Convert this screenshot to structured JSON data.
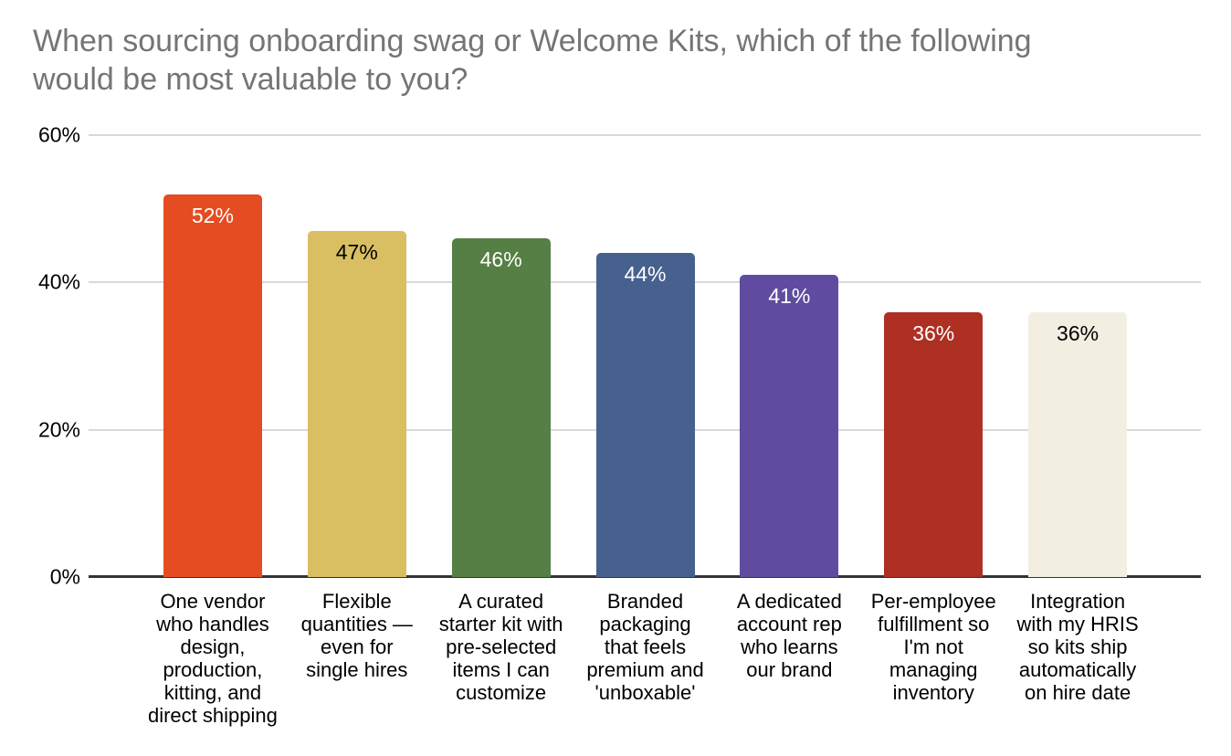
{
  "chart_data": {
    "type": "bar",
    "title": "When sourcing onboarding swag or Welcome Kits, which of the following would be most valuable to you?",
    "categories": [
      "One vendor who handles design, production, kitting, and direct shipping",
      "Flexible quantities — even for single hires",
      "A curated starter kit with pre-selected items I can customize",
      "Branded packaging that feels premium and 'unboxable'",
      "A dedicated account rep who learns our brand",
      "Per-employee fulfillment so I'm not managing inventory",
      "Integration with my HRIS so kits ship automatically on hire date"
    ],
    "category_lines": [
      [
        "One vendor",
        "who handles",
        "design,",
        "production,",
        "kitting, and",
        "direct shipping"
      ],
      [
        "Flexible",
        "quantities —",
        "even for",
        "single hires"
      ],
      [
        "A curated",
        "starter kit with",
        "pre-selected",
        "items I can",
        "customize"
      ],
      [
        "Branded",
        "packaging",
        "that feels",
        "premium and",
        "'unboxable'"
      ],
      [
        "A dedicated",
        "account rep",
        "who learns",
        "our brand"
      ],
      [
        "Per-employee",
        "fulfillment so",
        "I'm not",
        "managing",
        "inventory"
      ],
      [
        "Integration",
        "with my HRIS",
        "so kits ship",
        "automatically",
        "on hire date"
      ]
    ],
    "values": [
      52,
      47,
      46,
      44,
      41,
      36,
      36
    ],
    "value_labels": [
      "52%",
      "47%",
      "46%",
      "44%",
      "41%",
      "36%",
      "36%"
    ],
    "ylim": [
      0,
      60
    ],
    "yticks": [
      0,
      20,
      40,
      60
    ],
    "ytick_labels": [
      "0%",
      "20%",
      "40%",
      "60%"
    ],
    "xlabel": "",
    "ylabel": "",
    "grid": true,
    "legend": "none",
    "bar_colors": [
      "#E54C21",
      "#D9BF62",
      "#567F45",
      "#46618E",
      "#5F4CA0",
      "#AD3023",
      "#F2EFE2"
    ],
    "value_label_colors": [
      "#FFFFFF",
      "#000000",
      "#FFFFFF",
      "#FFFFFF",
      "#FFFFFF",
      "#FFFFFF",
      "#000000"
    ]
  },
  "style": {
    "background": "#FFFFFF",
    "title_color": "#757575",
    "gridline_color": "#D9D9D9",
    "axis_line_color": "#333333",
    "tick_label_color": "#000000",
    "category_label_color": "#000000"
  }
}
